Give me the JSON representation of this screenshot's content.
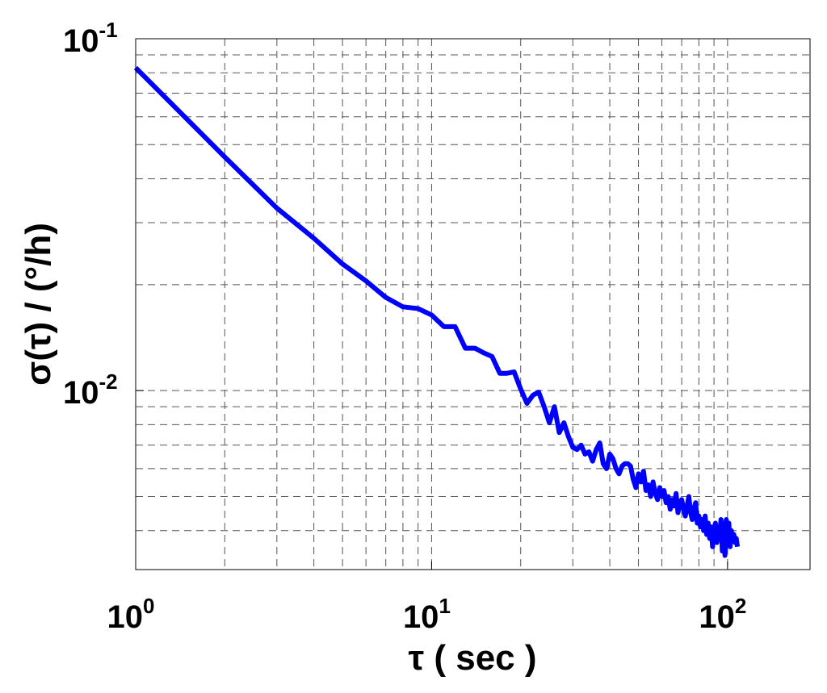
{
  "chart_data": {
    "type": "line",
    "x_label": "τ ( sec )",
    "y_label": "σ(τ) / (°/h)",
    "xscale": "log",
    "yscale": "log",
    "xlim": [
      1,
      190
    ],
    "ylim": [
      0.0031,
      0.1
    ],
    "xticks": [
      {
        "value": 1,
        "label": "10",
        "exponent": "0"
      },
      {
        "value": 10,
        "label": "10",
        "exponent": "1"
      },
      {
        "value": 100,
        "label": "10",
        "exponent": "2"
      }
    ],
    "yticks": [
      {
        "value": 0.01,
        "label": "10",
        "exponent": "-2"
      },
      {
        "value": 0.1,
        "label": "10",
        "exponent": "-1"
      }
    ],
    "xminorticks": [
      2,
      3,
      4,
      5,
      6,
      7,
      8,
      9,
      20,
      30,
      40,
      50,
      60,
      70,
      80,
      90
    ],
    "yminorticks": [
      0.004,
      0.005,
      0.006,
      0.007,
      0.008,
      0.009,
      0.02,
      0.03,
      0.04,
      0.05,
      0.06,
      0.07,
      0.08,
      0.09
    ],
    "grid": true,
    "x": [
      1,
      2,
      3,
      4,
      5,
      6,
      7,
      8,
      9,
      10,
      11,
      12,
      13,
      14,
      15,
      16,
      17,
      18,
      19,
      20,
      21,
      22,
      23,
      24,
      25,
      26,
      27,
      28,
      29,
      30,
      31,
      32,
      33,
      34,
      35,
      36,
      37,
      38,
      39,
      40,
      41,
      42,
      43,
      44,
      45,
      46,
      47,
      48,
      49,
      50,
      51,
      52,
      53,
      54,
      55,
      56,
      57,
      58,
      59,
      60,
      61,
      62,
      63,
      64,
      65,
      66,
      67,
      68,
      69,
      70,
      71,
      72,
      73,
      74,
      75,
      76,
      77,
      78,
      79,
      80,
      81,
      82,
      83,
      84,
      85,
      86,
      87,
      88,
      89,
      90,
      91,
      92,
      93,
      94,
      95,
      96,
      97,
      98,
      99,
      100,
      101,
      102,
      103,
      104,
      105,
      106,
      107,
      108
    ],
    "series": [
      {
        "color": "#0000ff",
        "values": [
          0.0827,
          0.0461,
          0.033,
          0.0271,
          0.0229,
          0.0205,
          0.0184,
          0.0173,
          0.0171,
          0.0164,
          0.0152,
          0.0152,
          0.0132,
          0.0132,
          0.0128,
          0.0125,
          0.0112,
          0.0112,
          0.0113,
          0.0101,
          0.0092,
          0.0097,
          0.0099,
          0.009,
          0.0081,
          0.009,
          0.0076,
          0.0081,
          0.0074,
          0.0069,
          0.0068,
          0.007,
          0.0066,
          0.0067,
          0.0063,
          0.0068,
          0.0071,
          0.0062,
          0.006,
          0.0066,
          0.0064,
          0.006,
          0.0058,
          0.0061,
          0.0062,
          0.0062,
          0.0061,
          0.0056,
          0.0053,
          0.0058,
          0.0055,
          0.0059,
          0.0052,
          0.0054,
          0.005,
          0.0055,
          0.0051,
          0.0049,
          0.0053,
          0.005,
          0.0052,
          0.0048,
          0.005,
          0.0046,
          0.0049,
          0.0047,
          0.0051,
          0.0045,
          0.0048,
          0.0049,
          0.0046,
          0.0044,
          0.0047,
          0.005,
          0.0045,
          0.0043,
          0.0046,
          0.0048,
          0.0042,
          0.0044,
          0.0041,
          0.0043,
          0.004,
          0.0044,
          0.0039,
          0.0042,
          0.0038,
          0.0041,
          0.0036,
          0.004,
          0.0042,
          0.0037,
          0.0041,
          0.0038,
          0.0043,
          0.0035,
          0.0042,
          0.0034,
          0.0043,
          0.0039,
          0.0042,
          0.0036,
          0.004,
          0.0038,
          0.0039,
          0.0037,
          0.0038,
          0.0036
        ]
      }
    ]
  }
}
